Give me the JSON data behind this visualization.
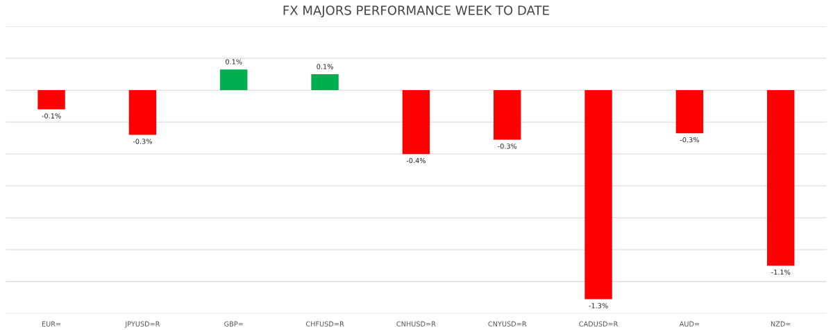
{
  "chart_data": {
    "type": "bar",
    "title": "FX MAJORS PERFORMANCE WEEK TO DATE",
    "categories": [
      "EUR=",
      "JPYUSD=R",
      "GBP=",
      "CHFUSD=R",
      "CNHUSD=R",
      "CNYUSD=R",
      "CADUSD=R",
      "AUD=",
      "NZD="
    ],
    "values": [
      -0.12,
      -0.28,
      0.13,
      0.1,
      -0.4,
      -0.31,
      -1.31,
      -0.27,
      -1.1
    ],
    "colors": [
      "#ff0000",
      "#ff0000",
      "#00b050",
      "#00b050",
      "#ff0000",
      "#ff0000",
      "#ff0000",
      "#ff0000",
      "#ff0000"
    ],
    "value_labels": [
      "-0.1%",
      "-0.3%",
      "0.1%",
      "0.1%",
      "-0.4%",
      "-0.3%",
      "-1.3%",
      "-0.3%",
      "-1.1%"
    ],
    "ylim": [
      -1.4,
      0.4
    ],
    "yticks": [
      {
        "value": -1.4,
        "label": null
      },
      {
        "value": -1.2,
        "label": null
      },
      {
        "value": -1.0,
        "label": null
      },
      {
        "value": -0.8,
        "label": null
      },
      {
        "value": -0.6,
        "label": null
      },
      {
        "value": -0.4,
        "label": null
      },
      {
        "value": -0.2,
        "label": null
      },
      {
        "value": 0,
        "label": null
      },
      {
        "value": 0.2,
        "label": null
      },
      {
        "value": 0.4,
        "label": null
      }
    ],
    "grid": "y"
  }
}
